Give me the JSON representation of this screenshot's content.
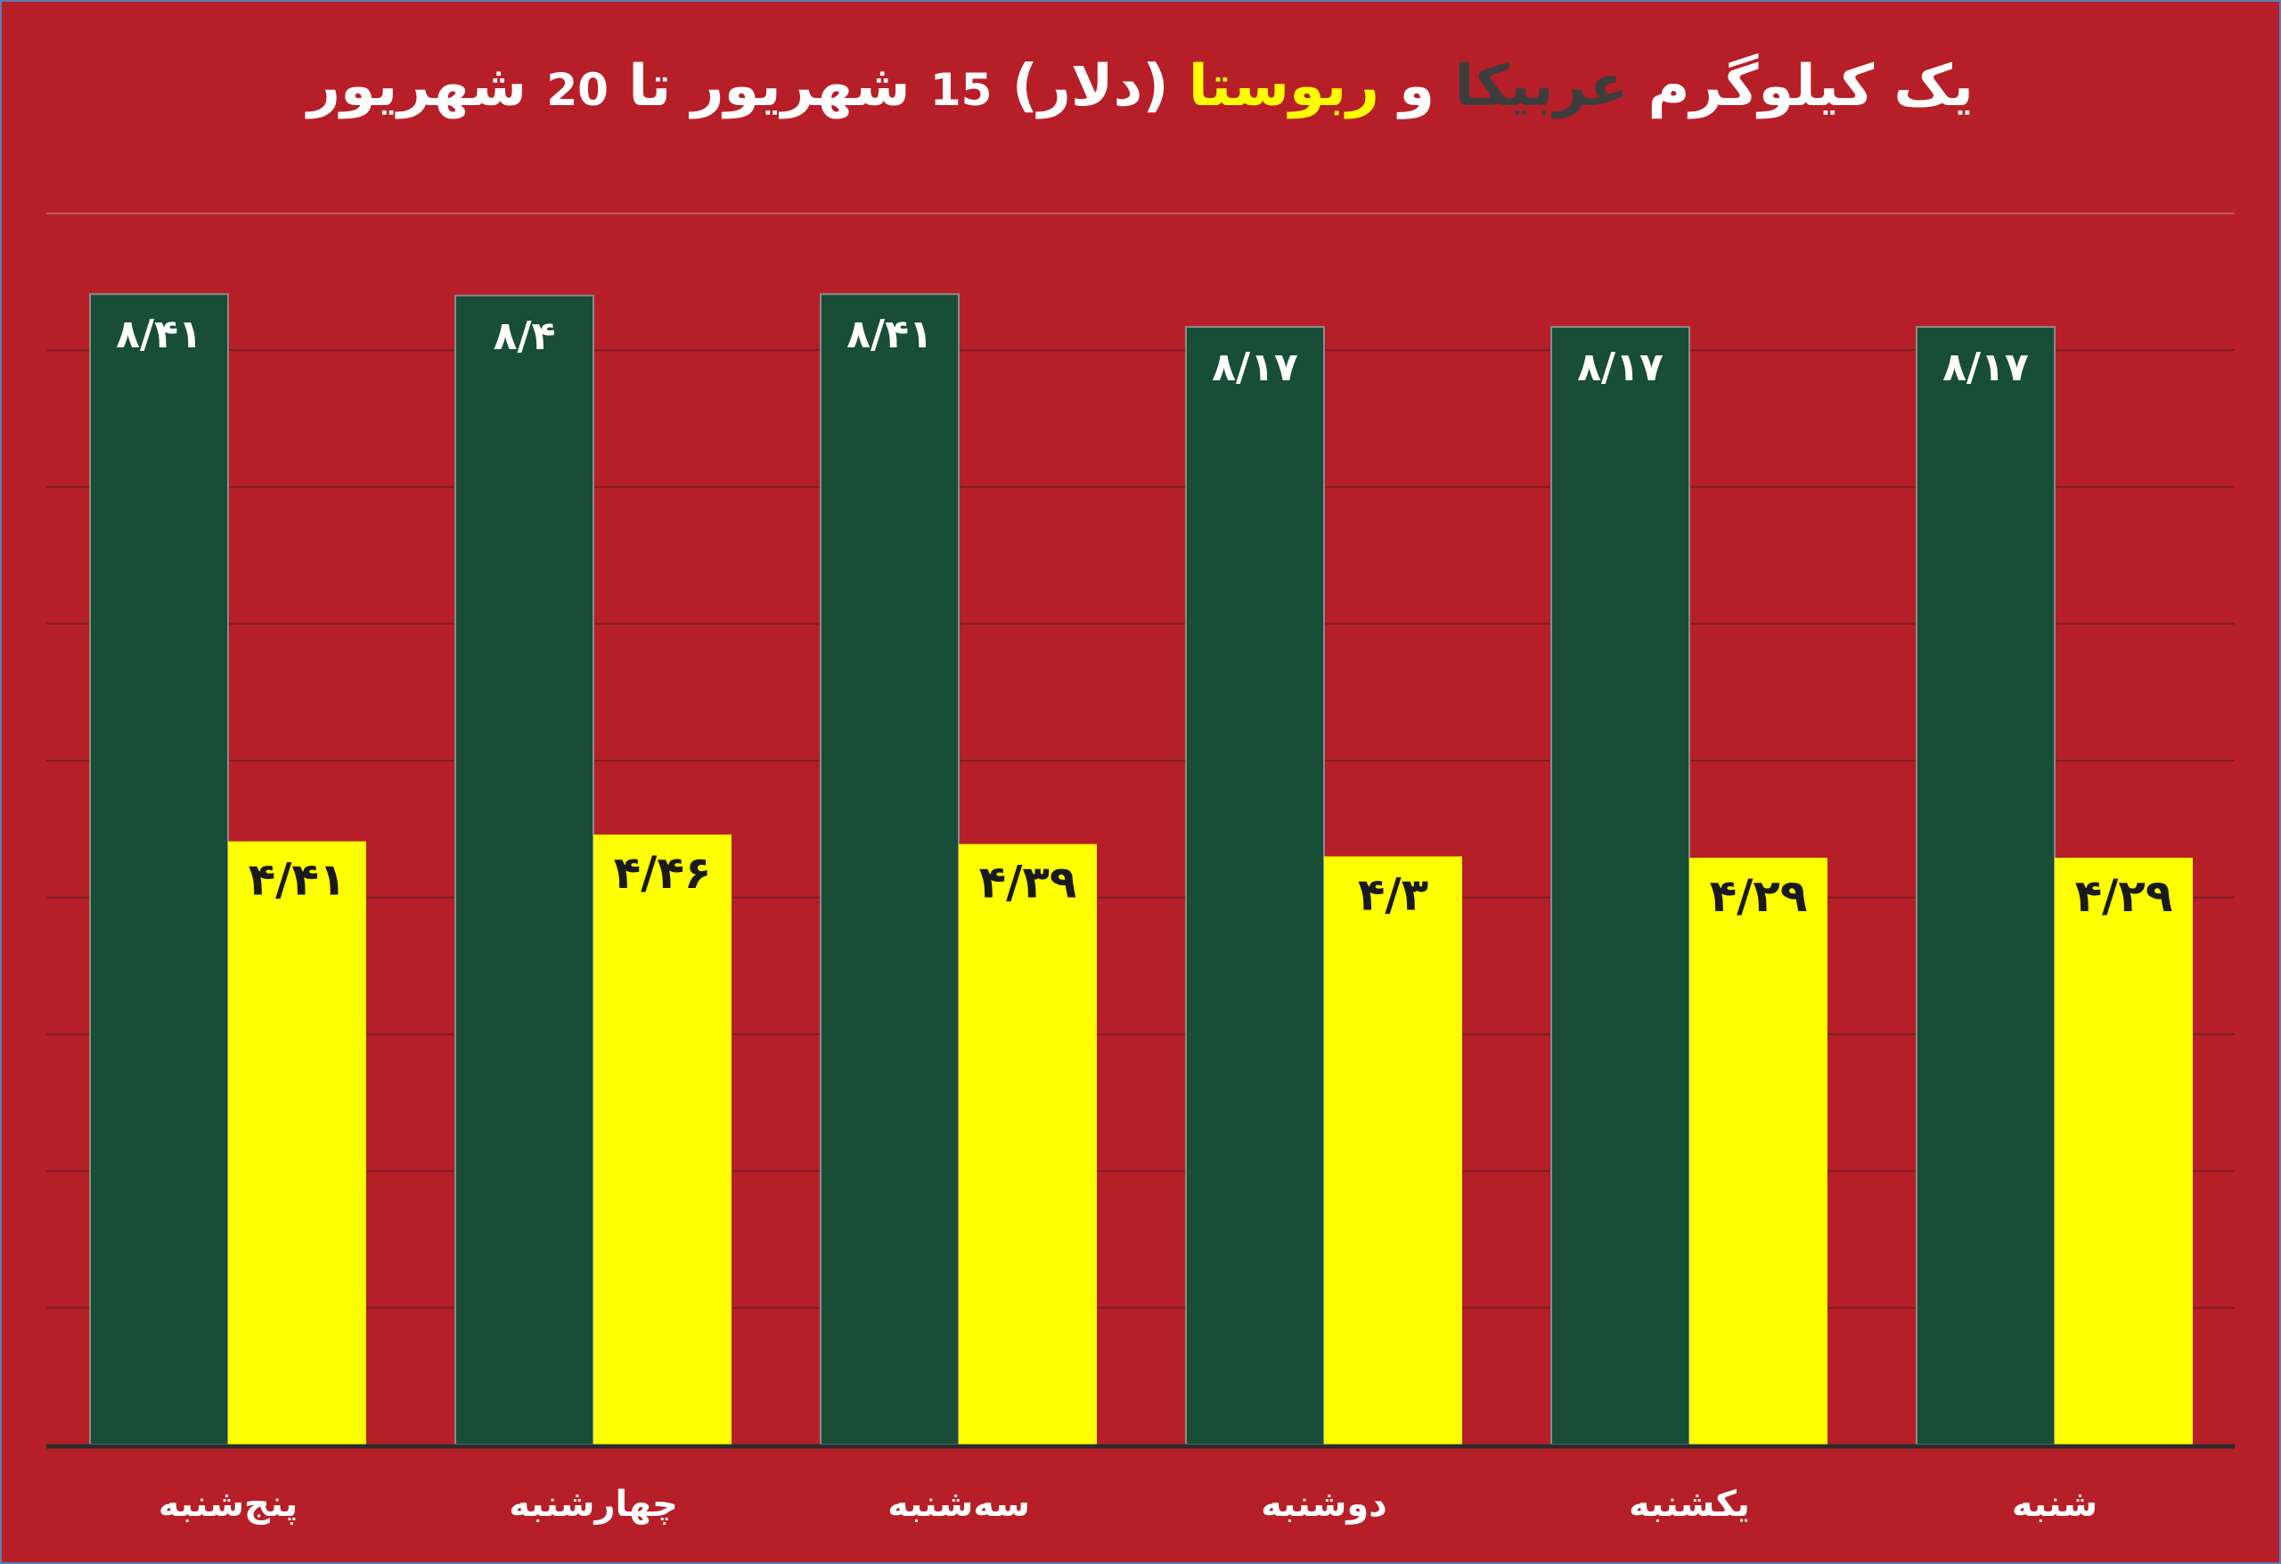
{
  "title": {
    "part1": "یک کیلوگرم",
    "arabica": "عربیکا",
    "and": "و",
    "robusta": "ربوستا",
    "open_paren": "(",
    "dollar": "دلار",
    "close_paren": ")",
    "from_num": "15",
    "from_month": "شهریور",
    "to": "تا",
    "to_num": "20",
    "to_month": "شهریور"
  },
  "colors": {
    "background": "#b71f28",
    "arabica": "#184d38",
    "robusta": "#ffff00",
    "gridline": "#c95b60",
    "axis": "#2b2b2b"
  },
  "chart_data": {
    "type": "bar",
    "categories": [
      "پنج‌شنبه",
      "چهارشنبه",
      "سه‌شنبه",
      "دوشنبه",
      "یکشنبه",
      "شنبه"
    ],
    "series": [
      {
        "name": "عربیکا",
        "values": [
          8.41,
          8.4,
          8.41,
          8.17,
          8.17,
          8.17
        ],
        "labels": [
          "۸/۴۱",
          "۸/۴",
          "۸/۴۱",
          "۸/۱۷",
          "۸/۱۷",
          "۸/۱۷"
        ]
      },
      {
        "name": "ربوستا",
        "values": [
          4.41,
          4.46,
          4.39,
          4.3,
          4.29,
          4.29
        ],
        "labels": [
          "۴/۴۱",
          "۴/۴۶",
          "۴/۳۹",
          "۴/۳",
          "۴/۲۹",
          "۴/۲۹"
        ]
      }
    ],
    "ylim": [
      0,
      9
    ],
    "grid": true,
    "legend": "none"
  }
}
